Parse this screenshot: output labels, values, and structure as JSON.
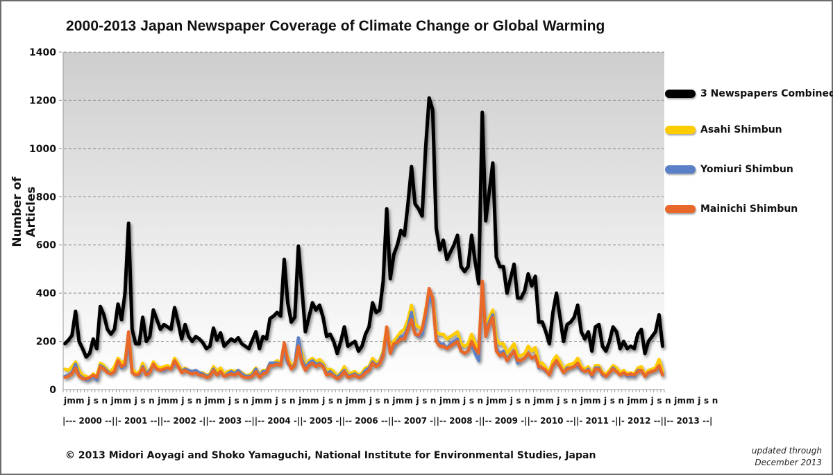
{
  "chart_data": {
    "type": "line",
    "title": "2000-2013 Japan Newspaper Coverage of Climate Change or Global Warming",
    "xlabel": "",
    "ylabel": "Number of Articles",
    "ylim": [
      0,
      1400
    ],
    "yticks": [
      0,
      200,
      400,
      600,
      800,
      1000,
      1200,
      1400
    ],
    "grid": true,
    "legend_position": "right",
    "x_start": "2000-01",
    "x_end": "2013-12",
    "month_tick_labels": "jmmjsn",
    "month_row_text": "jmm j s n jmm j s n jmm j s n jmm j s n jmm j s n jmm j s n jmm j s n jmm j s n jmm j s n jmm j s n jmm j s n jmm j s n jmm j s n jmm j s n",
    "year_row_text": "|--- 2000 --||- 2001 --||-- 2002 -||-- 2003 --||-- 2004 -||- 2005 -||-- 2006 --||-- 2007 -||-- 2008 -||-- 2009 -||-- 2010 --||- 2011 -||- 2012 --||-- 2013 --|",
    "years": [
      "2000",
      "2001",
      "2002",
      "2003",
      "2004",
      "2005",
      "2006",
      "2007",
      "2008",
      "2009",
      "2010",
      "2011",
      "2012",
      "2013"
    ],
    "series": [
      {
        "name": "3 Newspapers Combined",
        "color": "#000000",
        "values": [
          190,
          205,
          225,
          325,
          200,
          170,
          135,
          150,
          210,
          170,
          345,
          310,
          250,
          230,
          250,
          355,
          290,
          400,
          690,
          250,
          190,
          190,
          300,
          200,
          220,
          330,
          290,
          250,
          270,
          260,
          250,
          340,
          280,
          210,
          270,
          220,
          200,
          220,
          210,
          195,
          170,
          180,
          255,
          205,
          235,
          180,
          195,
          210,
          200,
          215,
          190,
          180,
          170,
          205,
          240,
          170,
          220,
          210,
          295,
          305,
          320,
          305,
          540,
          360,
          280,
          300,
          595,
          420,
          240,
          300,
          360,
          330,
          350,
          300,
          220,
          230,
          200,
          150,
          200,
          260,
          180,
          190,
          200,
          160,
          180,
          230,
          260,
          360,
          320,
          330,
          450,
          750,
          460,
          560,
          600,
          660,
          640,
          770,
          925,
          770,
          750,
          720,
          1000,
          1210,
          1160,
          670,
          580,
          620,
          540,
          570,
          600,
          640,
          510,
          490,
          510,
          640,
          530,
          440,
          1150,
          700,
          820,
          940,
          550,
          510,
          510,
          400,
          460,
          520,
          380,
          380,
          410,
          480,
          430,
          470,
          280,
          280,
          240,
          190,
          320,
          400,
          300,
          200,
          270,
          280,
          300,
          350,
          240,
          210,
          240,
          160,
          260,
          270,
          180,
          160,
          200,
          260,
          240,
          170,
          200,
          170,
          180,
          170,
          230,
          250,
          150,
          200,
          220,
          240,
          310,
          180
        ]
      },
      {
        "name": "Asahi Shimbun",
        "color": "#FFCC00",
        "values": [
          85,
          80,
          95,
          115,
          80,
          60,
          55,
          50,
          65,
          55,
          110,
          100,
          80,
          75,
          95,
          130,
          110,
          120,
          230,
          85,
          70,
          70,
          110,
          75,
          80,
          115,
          95,
          90,
          95,
          100,
          90,
          130,
          105,
          80,
          90,
          80,
          75,
          80,
          70,
          70,
          60,
          65,
          95,
          75,
          90,
          65,
          75,
          80,
          75,
          80,
          70,
          60,
          60,
          70,
          90,
          60,
          80,
          80,
          110,
          110,
          120,
          110,
          190,
          130,
          100,
          110,
          200,
          150,
          90,
          120,
          130,
          115,
          125,
          110,
          80,
          85,
          75,
          55,
          70,
          95,
          65,
          70,
          75,
          60,
          70,
          90,
          95,
          130,
          110,
          120,
          160,
          260,
          170,
          200,
          220,
          240,
          250,
          290,
          350,
          270,
          260,
          250,
          330,
          410,
          380,
          240,
          230,
          230,
          210,
          220,
          230,
          240,
          190,
          180,
          190,
          230,
          190,
          170,
          400,
          260,
          300,
          330,
          210,
          190,
          190,
          150,
          170,
          190,
          140,
          140,
          150,
          180,
          160,
          175,
          110,
          110,
          90,
          75,
          120,
          140,
          115,
          80,
          100,
          105,
          110,
          130,
          95,
          85,
          95,
          65,
          100,
          100,
          70,
          65,
          80,
          100,
          90,
          70,
          80,
          65,
          70,
          65,
          90,
          95,
          60,
          80,
          85,
          90,
          125,
          75
        ]
      },
      {
        "name": "Yomiuri Shimbun",
        "color": "#5B7FC6",
        "values": [
          55,
          60,
          70,
          105,
          60,
          50,
          40,
          45,
          55,
          40,
          100,
          90,
          75,
          65,
          75,
          115,
          90,
          100,
          210,
          70,
          60,
          60,
          95,
          65,
          80,
          100,
          85,
          80,
          80,
          90,
          85,
          110,
          95,
          75,
          85,
          80,
          75,
          80,
          70,
          65,
          55,
          60,
          85,
          60,
          75,
          55,
          65,
          75,
          65,
          80,
          65,
          55,
          55,
          60,
          85,
          55,
          75,
          75,
          110,
          110,
          110,
          105,
          170,
          110,
          90,
          105,
          215,
          125,
          90,
          110,
          120,
          105,
          110,
          100,
          65,
          75,
          60,
          50,
          65,
          80,
          55,
          60,
          65,
          55,
          60,
          80,
          90,
          115,
          100,
          110,
          150,
          240,
          150,
          180,
          200,
          220,
          220,
          260,
          320,
          230,
          220,
          230,
          300,
          390,
          360,
          210,
          190,
          190,
          170,
          190,
          200,
          210,
          160,
          150,
          160,
          190,
          150,
          120,
          430,
          230,
          280,
          310,
          170,
          150,
          160,
          120,
          140,
          160,
          110,
          120,
          130,
          150,
          130,
          140,
          90,
          90,
          75,
          65,
          100,
          120,
          95,
          70,
          90,
          90,
          95,
          100,
          80,
          75,
          85,
          55,
          90,
          90,
          60,
          55,
          70,
          90,
          75,
          60,
          70,
          55,
          60,
          55,
          80,
          80,
          55,
          70,
          75,
          80,
          95,
          60
        ]
      },
      {
        "name": "Mainichi Shimbun",
        "color": "#E8672A",
        "values": [
          50,
          55,
          65,
          90,
          55,
          45,
          45,
          50,
          60,
          50,
          95,
          85,
          70,
          65,
          75,
          120,
          95,
          105,
          240,
          70,
          60,
          65,
          90,
          60,
          70,
          105,
          85,
          80,
          85,
          90,
          85,
          120,
          95,
          70,
          80,
          70,
          65,
          70,
          60,
          60,
          50,
          55,
          80,
          60,
          75,
          55,
          60,
          65,
          60,
          70,
          55,
          50,
          50,
          55,
          75,
          50,
          65,
          70,
          100,
          100,
          105,
          100,
          195,
          120,
          85,
          100,
          180,
          110,
          80,
          100,
          110,
          95,
          105,
          95,
          60,
          65,
          55,
          45,
          55,
          75,
          50,
          55,
          60,
          50,
          55,
          70,
          80,
          110,
          95,
          105,
          140,
          260,
          150,
          190,
          195,
          210,
          210,
          250,
          290,
          230,
          225,
          250,
          320,
          420,
          380,
          200,
          180,
          180,
          170,
          180,
          190,
          200,
          160,
          150,
          160,
          200,
          170,
          150,
          450,
          220,
          270,
          300,
          160,
          140,
          150,
          120,
          140,
          160,
          120,
          120,
          130,
          150,
          130,
          140,
          95,
          90,
          80,
          60,
          100,
          120,
          95,
          70,
          85,
          90,
          95,
          110,
          85,
          75,
          80,
          60,
          85,
          85,
          65,
          55,
          70,
          85,
          75,
          60,
          70,
          60,
          65,
          60,
          75,
          80,
          55,
          70,
          75,
          80,
          100,
          60
        ]
      }
    ]
  },
  "legend": {
    "items": [
      {
        "label": "3 Newspapers Combined",
        "color": "#000000"
      },
      {
        "label": "Asahi Shimbun",
        "color": "#FFCC00"
      },
      {
        "label": "Yomiuri Shimbun",
        "color": "#5B7FC6"
      },
      {
        "label": "Mainichi Shimbun",
        "color": "#E8672A"
      }
    ]
  },
  "footer": {
    "copyright": "© 2013 Midori Aoyagi and Shoko Yamaguchi, National Institute for Environmental Studies, Japan",
    "updated_line1": "updated through",
    "updated_line2": "December 2013"
  }
}
